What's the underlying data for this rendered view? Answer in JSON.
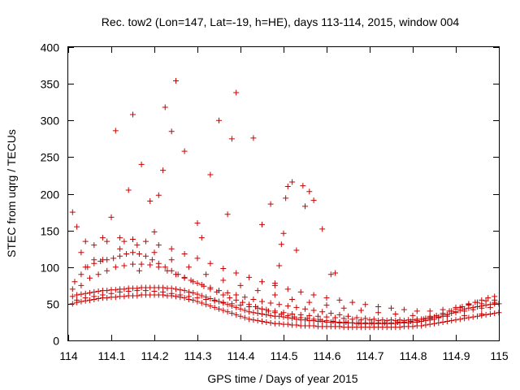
{
  "chart_data": {
    "type": "scatter",
    "title": "Rec. tow2 (Lon=147, Lat=-19, h=HE), days 113-114, 2015, window 004",
    "xlabel": "GPS time / Days of year 2015",
    "ylabel": "STEC from uqrg / TECUs",
    "xlim": [
      114,
      115
    ],
    "ylim": [
      0,
      400
    ],
    "x_ticks": [
      114,
      114.1,
      114.2,
      114.3,
      114.4,
      114.5,
      114.6,
      114.7,
      114.8,
      114.9,
      115
    ],
    "x_tick_labels": [
      "114",
      "114.1",
      "114.2",
      "114.3",
      "114.4",
      "114.5",
      "114.6",
      "114.7",
      "114.8",
      "114.9",
      "115"
    ],
    "y_ticks": [
      0,
      50,
      100,
      150,
      200,
      250,
      300,
      350,
      400
    ],
    "y_tick_labels": [
      "0",
      "50",
      "100",
      "150",
      "200",
      "250",
      "300",
      "350",
      "400"
    ],
    "grid": false,
    "legend": "none",
    "marker": "plus",
    "color": "#cc0000",
    "series": [
      {
        "x": [
          114.01,
          114.02,
          114.03,
          114.04,
          114.05,
          114.06,
          114.07,
          114.08,
          114.09,
          114.1,
          114.11,
          114.12,
          114.13,
          114.14,
          114.15,
          114.16,
          114.17,
          114.18,
          114.19,
          114.2,
          114.21,
          114.22,
          114.23,
          114.24,
          114.25,
          114.26,
          114.27,
          114.28,
          114.29,
          114.3,
          114.31,
          114.32,
          114.33,
          114.34,
          114.35,
          114.36,
          114.37,
          114.38,
          114.39,
          114.4,
          114.41,
          114.42,
          114.43,
          114.44,
          114.45,
          114.46,
          114.47,
          114.48,
          114.49,
          114.5,
          114.51,
          114.52,
          114.53,
          114.54,
          114.55,
          114.56,
          114.57,
          114.58,
          114.59,
          114.6,
          114.61,
          114.62,
          114.63,
          114.64,
          114.65,
          114.66,
          114.67,
          114.68,
          114.69,
          114.7,
          114.71,
          114.72,
          114.73,
          114.74,
          114.75,
          114.76,
          114.77,
          114.78,
          114.79,
          114.8,
          114.81,
          114.82,
          114.83,
          114.84,
          114.85,
          114.86,
          114.87,
          114.88,
          114.89,
          114.9,
          114.91,
          114.92,
          114.93,
          114.94,
          114.95,
          114.96,
          114.97,
          114.98,
          114.99,
          115,
          114.01,
          114.02,
          114.03,
          114.04,
          114.05,
          114.06,
          114.07,
          114.08,
          114.09,
          114.1,
          114.11,
          114.12,
          114.13,
          114.14,
          114.15,
          114.16,
          114.17,
          114.18,
          114.19,
          114.2,
          114.21,
          114.22,
          114.23,
          114.24,
          114.25,
          114.26,
          114.27,
          114.28,
          114.29,
          114.3,
          114.31,
          114.32,
          114.33,
          114.34,
          114.35,
          114.36,
          114.37,
          114.38,
          114.39,
          114.4,
          114.41,
          114.42,
          114.43,
          114.44,
          114.45,
          114.46,
          114.47,
          114.48,
          114.49,
          114.5,
          114.51,
          114.52,
          114.53,
          114.54,
          114.55,
          114.56,
          114.57,
          114.58,
          114.59,
          114.6,
          114.61,
          114.62,
          114.63,
          114.64,
          114.65,
          114.66,
          114.67,
          114.68,
          114.69,
          114.7,
          114.71,
          114.72,
          114.73,
          114.74,
          114.75,
          114.76,
          114.77,
          114.78,
          114.79,
          114.8,
          114.81,
          114.82,
          114.83,
          114.84,
          114.85,
          114.86,
          114.87,
          114.88,
          114.89,
          114.9,
          114.91,
          114.92,
          114.93,
          114.94,
          114.95,
          114.96,
          114.97,
          114.98,
          114.99,
          115,
          114.015,
          114.03,
          114.045,
          114.06,
          114.075,
          114.09,
          114.105,
          114.12,
          114.135,
          114.15,
          114.165,
          114.18,
          114.195,
          114.21,
          114.225,
          114.24,
          114.255,
          114.27,
          114.285,
          114.3,
          114.315,
          114.33,
          114.345,
          114.36,
          114.375,
          114.39,
          114.405,
          114.42,
          114.435,
          114.45,
          114.465,
          114.48,
          114.495,
          114.51,
          114.525,
          114.54,
          114.555,
          114.57,
          114.585,
          114.6,
          114.615,
          114.63,
          114.645,
          114.66,
          114.675,
          114.69,
          114.705,
          114.72,
          114.735,
          114.75,
          114.765,
          114.78,
          114.795,
          114.81,
          114.825,
          114.84,
          114.855,
          114.87,
          114.885,
          114.9,
          114.915,
          114.93,
          114.945,
          114.96,
          114.975,
          114.99,
          114.01,
          114.03,
          114.05,
          114.07,
          114.09,
          114.11,
          114.13,
          114.15,
          114.17,
          114.19,
          114.21,
          114.23,
          114.25,
          114.27,
          114.29,
          114.31,
          114.33,
          114.35,
          114.37,
          114.39,
          114.41,
          114.43,
          114.45,
          114.47,
          114.49,
          114.51,
          114.53,
          114.55,
          114.57,
          114.59,
          114.61,
          114.63,
          114.65,
          114.67,
          114.69,
          114.71,
          114.73,
          114.75,
          114.77,
          114.79,
          114.81,
          114.83,
          114.85,
          114.87,
          114.89,
          114.91,
          114.93,
          114.95,
          114.97,
          114.99,
          114.02,
          114.04,
          114.06,
          114.08,
          114.1,
          114.12,
          114.14,
          114.16,
          114.18,
          114.2,
          114.22,
          114.24,
          114.26,
          114.28,
          114.3,
          114.32,
          114.34,
          114.36,
          114.38,
          114.4,
          114.42,
          114.44,
          114.46,
          114.48,
          114.5,
          114.52,
          114.54,
          114.56,
          114.58,
          114.6,
          114.62,
          114.64,
          114.66,
          114.68,
          114.7,
          114.72,
          114.74,
          114.76,
          114.78,
          114.8,
          114.82,
          114.84,
          114.86,
          114.88,
          114.9,
          114.92,
          114.94,
          114.96,
          114.98,
          114.03,
          114.06,
          114.09,
          114.12,
          114.15,
          114.18,
          114.21,
          114.24,
          114.27,
          114.3,
          114.33,
          114.36,
          114.39,
          114.42,
          114.45,
          114.48,
          114.51,
          114.54,
          114.57,
          114.6,
          114.63,
          114.66,
          114.69,
          114.72,
          114.75,
          114.78,
          114.81,
          114.84,
          114.87,
          114.9,
          114.93,
          114.96,
          114.99,
          114.04,
          114.08,
          114.12,
          114.16,
          114.2,
          114.24,
          114.28,
          114.32,
          114.36,
          114.4,
          114.44,
          114.48,
          114.52,
          114.56,
          114.6,
          114.64,
          114.68,
          114.72,
          114.76,
          114.8,
          114.84,
          114.88,
          114.92,
          114.96,
          114.01,
          114.02,
          114.04,
          114.06,
          114.08,
          114.1,
          114.11,
          114.13,
          114.14,
          114.15,
          114.165,
          114.17,
          114.19,
          114.2,
          114.21,
          114.22,
          114.225,
          114.24,
          114.25,
          114.27,
          114.3,
          114.31,
          114.33,
          114.35,
          114.37,
          114.38,
          114.39,
          114.43,
          114.45,
          114.47,
          114.48,
          114.49,
          114.495,
          114.5,
          114.505,
          114.51,
          114.52,
          114.53,
          114.545,
          114.55,
          114.56,
          114.57,
          114.59,
          114.61,
          114.62
        ],
        "y": [
          50,
          52,
          53,
          54,
          55,
          56,
          57,
          58,
          58,
          59,
          59,
          60,
          60,
          61,
          61,
          61,
          62,
          62,
          62,
          62,
          62,
          62,
          61,
          61,
          60,
          59,
          58,
          56,
          55,
          53,
          51,
          49,
          47,
          45,
          43,
          41,
          39,
          37,
          35,
          33,
          31,
          29,
          28,
          27,
          26,
          25,
          24,
          23,
          23,
          22,
          22,
          21,
          21,
          20,
          20,
          20,
          20,
          19,
          19,
          19,
          19,
          19,
          19,
          18,
          18,
          18,
          18,
          18,
          18,
          18,
          18,
          18,
          18,
          18,
          18,
          18,
          18,
          19,
          19,
          19,
          20,
          20,
          21,
          22,
          23,
          24,
          25,
          26,
          27,
          28,
          29,
          30,
          31,
          32,
          33,
          34,
          35,
          36,
          37,
          38,
          60,
          62,
          63,
          64,
          65,
          66,
          67,
          68,
          68,
          69,
          69,
          70,
          70,
          71,
          71,
          71,
          72,
          72,
          72,
          72,
          72,
          72,
          71,
          71,
          70,
          69,
          68,
          66,
          65,
          63,
          61,
          59,
          57,
          55,
          53,
          51,
          49,
          47,
          45,
          43,
          41,
          39,
          38,
          37,
          36,
          35,
          34,
          33,
          33,
          32,
          31,
          30,
          29,
          28,
          28,
          27,
          27,
          26,
          26,
          25,
          25,
          25,
          24,
          24,
          24,
          24,
          23,
          23,
          23,
          23,
          23,
          23,
          23,
          23,
          23,
          23,
          24,
          24,
          24,
          25,
          25,
          26,
          27,
          28,
          29,
          31,
          33,
          35,
          37,
          39,
          41,
          43,
          44,
          45,
          46,
          47,
          48,
          49,
          50,
          50,
          80,
          90,
          100,
          105,
          108,
          110,
          112,
          115,
          118,
          120,
          118,
          115,
          110,
          105,
          100,
          95,
          90,
          86,
          82,
          78,
          74,
          70,
          66,
          62,
          58,
          55,
          52,
          49,
          46,
          43,
          40,
          38,
          36,
          34,
          32,
          31,
          30,
          29,
          28,
          27,
          26,
          25,
          25,
          24,
          24,
          24,
          24,
          24,
          24,
          24,
          25,
          25,
          26,
          27,
          29,
          31,
          34,
          37,
          40,
          43,
          46,
          49,
          52,
          55,
          58,
          60,
          70,
          75,
          85,
          90,
          95,
          100,
          102,
          104,
          104,
          103,
          100,
          95,
          90,
          85,
          80,
          76,
          72,
          68,
          65,
          62,
          59,
          56,
          53,
          51,
          49,
          47,
          45,
          43,
          41,
          39,
          37,
          35,
          33,
          31,
          30,
          29,
          28,
          28,
          28,
          28,
          29,
          30,
          32,
          35,
          40,
          45,
          50,
          52,
          54,
          55,
          55,
          58,
          60,
          62,
          64,
          66,
          67,
          68,
          68,
          67,
          66,
          64,
          62,
          60,
          58,
          56,
          54,
          52,
          50,
          48,
          46,
          44,
          42,
          40,
          38,
          36,
          35,
          34,
          33,
          32,
          31,
          30,
          29,
          28,
          28,
          27,
          27,
          27,
          27,
          28,
          29,
          30,
          32,
          35,
          38,
          40,
          42,
          44,
          45,
          120,
          130,
          135,
          140,
          138,
          135,
          130,
          125,
          118,
          112,
          105,
          98,
          92,
          86,
          80,
          75,
          70,
          66,
          62,
          58,
          55,
          52,
          49,
          46,
          44,
          42,
          40,
          40,
          42,
          45,
          48,
          50,
          52,
          100,
          110,
          125,
          130,
          120,
          110,
          100,
          90,
          82,
          75,
          68,
          62,
          56,
          52,
          48,
          44,
          41,
          38,
          36,
          34,
          33,
          33,
          34,
          36,
          175,
          155,
          135,
          110,
          140,
          168,
          286,
          135,
          205,
          308,
          95,
          240,
          190,
          148,
          198,
          232,
          318,
          285,
          354,
          258,
          160,
          140,
          226,
          300,
          172,
          275,
          338,
          276,
          158,
          186,
          78,
          102,
          131,
          146,
          194,
          210,
          216,
          123,
          211,
          183,
          203,
          191,
          152,
          90,
          92
        ]
      }
    ]
  }
}
